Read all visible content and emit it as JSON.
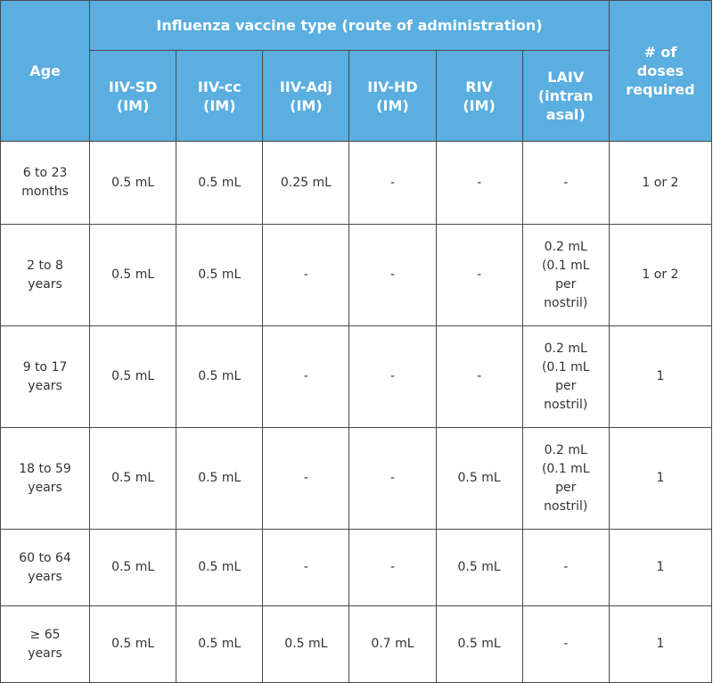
{
  "table": {
    "header": {
      "age": "Age",
      "group_title": "Influenza vaccine type (route of administration)",
      "doses": "# of\ndoses\nrequired",
      "vaccine_types": [
        "IIV-SD\n(IM)",
        "IIV-cc\n(IM)",
        "IIV-Adj\n(IM)",
        "IIV-HD\n(IM)",
        "RIV\n(IM)",
        "LAIV\n(intran\nasal)"
      ]
    },
    "rows": [
      {
        "age": "6 to 23\nmonths",
        "cells": [
          "0.5 mL",
          "0.5 mL",
          "0.25 mL",
          "-",
          "-",
          "-"
        ],
        "doses": "1 or 2"
      },
      {
        "age": "2 to 8\nyears",
        "cells": [
          "0.5 mL",
          "0.5 mL",
          "-",
          "-",
          "-",
          "0.2 mL\n(0.1 mL\nper\nnostril)"
        ],
        "doses": "1 or 2"
      },
      {
        "age": "9 to 17\nyears",
        "cells": [
          "0.5 mL",
          "0.5 mL",
          "-",
          "-",
          "-",
          "0.2 mL\n(0.1 mL\nper\nnostril)"
        ],
        "doses": "1"
      },
      {
        "age": "18 to 59\nyears",
        "cells": [
          "0.5 mL",
          "0.5 mL",
          "-",
          "-",
          "0.5 mL",
          "0.2 mL\n(0.1 mL\nper\nnostril)"
        ],
        "doses": "1"
      },
      {
        "age": "60 to 64\nyears",
        "cells": [
          "0.5 mL",
          "0.5 mL",
          "-",
          "-",
          "0.5 mL",
          "-"
        ],
        "doses": "1"
      },
      {
        "age": "≥ 65\nyears",
        "cells": [
          "0.5 mL",
          "0.5 mL",
          "0.5 mL",
          "0.7 mL",
          "0.5 mL",
          "-"
        ],
        "doses": "1"
      }
    ]
  },
  "colors": {
    "header_bg": "#5aaee0",
    "header_text": "#ffffff",
    "border": "#4a4a4a",
    "body_text": "#333333"
  }
}
